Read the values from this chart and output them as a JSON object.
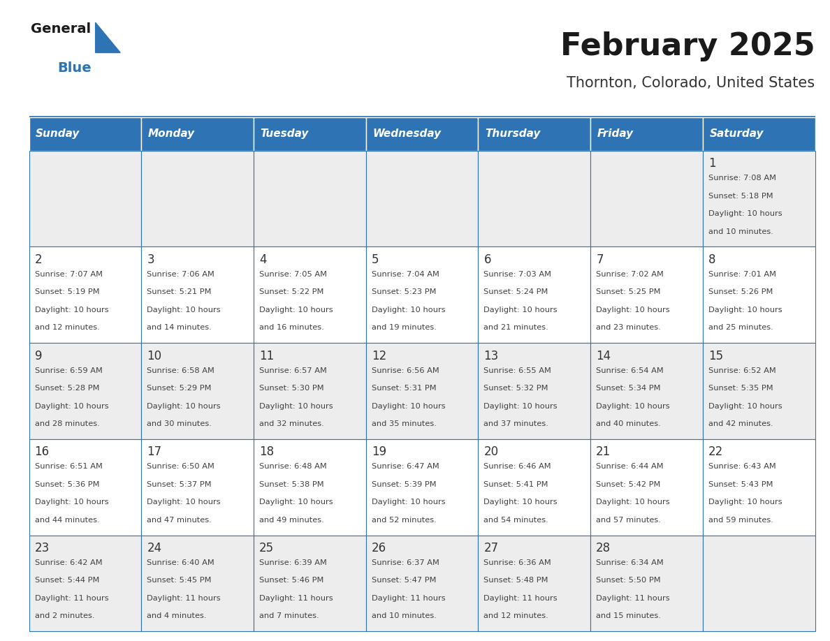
{
  "title": "February 2025",
  "subtitle": "Thornton, Colorado, United States",
  "header_bg_color": "#2E74B5",
  "header_text_color": "#FFFFFF",
  "day_names": [
    "Sunday",
    "Monday",
    "Tuesday",
    "Wednesday",
    "Thursday",
    "Friday",
    "Saturday"
  ],
  "alt_row_color": "#EDEDED",
  "white_row_color": "#FFFFFF",
  "border_color": "#2E74B5",
  "cell_border_color": "#AAAAAA",
  "text_color": "#404040",
  "day_num_color": "#333333",
  "title_color": "#1A1A1A",
  "subtitle_color": "#333333",
  "logo_general_color": "#1A1A1A",
  "logo_blue_color": "#2E74B5",
  "logo_triangle_color": "#2E74B5",
  "weeks": [
    [
      null,
      null,
      null,
      null,
      null,
      null,
      {
        "day": 1,
        "sunrise": "7:08 AM",
        "sunset": "5:18 PM",
        "daylight": "10 hours and 10 minutes."
      }
    ],
    [
      {
        "day": 2,
        "sunrise": "7:07 AM",
        "sunset": "5:19 PM",
        "daylight": "10 hours and 12 minutes."
      },
      {
        "day": 3,
        "sunrise": "7:06 AM",
        "sunset": "5:21 PM",
        "daylight": "10 hours and 14 minutes."
      },
      {
        "day": 4,
        "sunrise": "7:05 AM",
        "sunset": "5:22 PM",
        "daylight": "10 hours and 16 minutes."
      },
      {
        "day": 5,
        "sunrise": "7:04 AM",
        "sunset": "5:23 PM",
        "daylight": "10 hours and 19 minutes."
      },
      {
        "day": 6,
        "sunrise": "7:03 AM",
        "sunset": "5:24 PM",
        "daylight": "10 hours and 21 minutes."
      },
      {
        "day": 7,
        "sunrise": "7:02 AM",
        "sunset": "5:25 PM",
        "daylight": "10 hours and 23 minutes."
      },
      {
        "day": 8,
        "sunrise": "7:01 AM",
        "sunset": "5:26 PM",
        "daylight": "10 hours and 25 minutes."
      }
    ],
    [
      {
        "day": 9,
        "sunrise": "6:59 AM",
        "sunset": "5:28 PM",
        "daylight": "10 hours and 28 minutes."
      },
      {
        "day": 10,
        "sunrise": "6:58 AM",
        "sunset": "5:29 PM",
        "daylight": "10 hours and 30 minutes."
      },
      {
        "day": 11,
        "sunrise": "6:57 AM",
        "sunset": "5:30 PM",
        "daylight": "10 hours and 32 minutes."
      },
      {
        "day": 12,
        "sunrise": "6:56 AM",
        "sunset": "5:31 PM",
        "daylight": "10 hours and 35 minutes."
      },
      {
        "day": 13,
        "sunrise": "6:55 AM",
        "sunset": "5:32 PM",
        "daylight": "10 hours and 37 minutes."
      },
      {
        "day": 14,
        "sunrise": "6:54 AM",
        "sunset": "5:34 PM",
        "daylight": "10 hours and 40 minutes."
      },
      {
        "day": 15,
        "sunrise": "6:52 AM",
        "sunset": "5:35 PM",
        "daylight": "10 hours and 42 minutes."
      }
    ],
    [
      {
        "day": 16,
        "sunrise": "6:51 AM",
        "sunset": "5:36 PM",
        "daylight": "10 hours and 44 minutes."
      },
      {
        "day": 17,
        "sunrise": "6:50 AM",
        "sunset": "5:37 PM",
        "daylight": "10 hours and 47 minutes."
      },
      {
        "day": 18,
        "sunrise": "6:48 AM",
        "sunset": "5:38 PM",
        "daylight": "10 hours and 49 minutes."
      },
      {
        "day": 19,
        "sunrise": "6:47 AM",
        "sunset": "5:39 PM",
        "daylight": "10 hours and 52 minutes."
      },
      {
        "day": 20,
        "sunrise": "6:46 AM",
        "sunset": "5:41 PM",
        "daylight": "10 hours and 54 minutes."
      },
      {
        "day": 21,
        "sunrise": "6:44 AM",
        "sunset": "5:42 PM",
        "daylight": "10 hours and 57 minutes."
      },
      {
        "day": 22,
        "sunrise": "6:43 AM",
        "sunset": "5:43 PM",
        "daylight": "10 hours and 59 minutes."
      }
    ],
    [
      {
        "day": 23,
        "sunrise": "6:42 AM",
        "sunset": "5:44 PM",
        "daylight": "11 hours and 2 minutes."
      },
      {
        "day": 24,
        "sunrise": "6:40 AM",
        "sunset": "5:45 PM",
        "daylight": "11 hours and 4 minutes."
      },
      {
        "day": 25,
        "sunrise": "6:39 AM",
        "sunset": "5:46 PM",
        "daylight": "11 hours and 7 minutes."
      },
      {
        "day": 26,
        "sunrise": "6:37 AM",
        "sunset": "5:47 PM",
        "daylight": "11 hours and 10 minutes."
      },
      {
        "day": 27,
        "sunrise": "6:36 AM",
        "sunset": "5:48 PM",
        "daylight": "11 hours and 12 minutes."
      },
      {
        "day": 28,
        "sunrise": "6:34 AM",
        "sunset": "5:50 PM",
        "daylight": "11 hours and 15 minutes."
      },
      null
    ]
  ]
}
